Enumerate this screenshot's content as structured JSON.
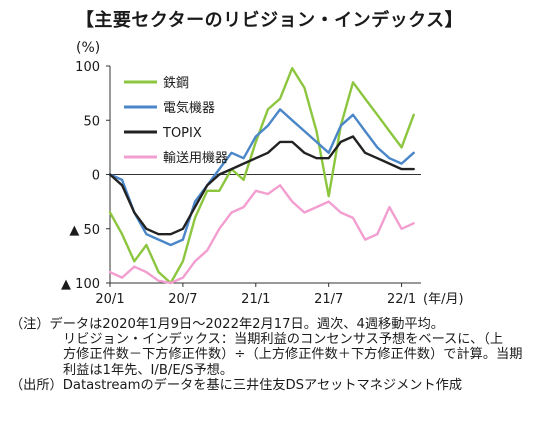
{
  "title": "【主要セクターのリビジョン・インデックス】",
  "notes": [
    "（注）データは2020年1月9日～2022年2月17日。週次、4週移動平均。",
    "リビジョン・インデックス：当期利益のコンセンサス予想をベースに、（上",
    "方修正件数－下方修正件数）÷（上方修正件数＋下方修正件数）で計算。当期利益は1年先、I/B/E/S予想。",
    "（出所）Datastreamのデータを基に三井住友DSアセットマネジメント作成"
  ],
  "chart_data": {
    "type": "line",
    "ylabel": "(%)",
    "xlabel": "(年/月)",
    "ylim": [
      -100,
      100
    ],
    "yticks": [
      100,
      50,
      0,
      -50,
      -100
    ],
    "ytick_labels": [
      "100",
      "50",
      "0",
      "▲ 50",
      "▲ 100"
    ],
    "xticks": [
      "20/1",
      "20/7",
      "21/1",
      "21/7",
      "22/1"
    ],
    "x_range": [
      "2020-01",
      "2022-02"
    ],
    "grid": false,
    "legend_position": "top-left",
    "series": [
      {
        "name": "鉄鋼",
        "color": "#8cc63f",
        "x": [
          "2020-01",
          "2020-02",
          "2020-03",
          "2020-04",
          "2020-05",
          "2020-06",
          "2020-07",
          "2020-08",
          "2020-09",
          "2020-10",
          "2020-11",
          "2020-12",
          "2021-01",
          "2021-02",
          "2021-03",
          "2021-04",
          "2021-05",
          "2021-06",
          "2021-07",
          "2021-08",
          "2021-09",
          "2021-10",
          "2021-11",
          "2021-12",
          "2022-01",
          "2022-02"
        ],
        "values": [
          -35,
          -55,
          -80,
          -65,
          -90,
          -100,
          -80,
          -40,
          -15,
          -15,
          5,
          -5,
          30,
          60,
          70,
          98,
          80,
          40,
          -20,
          45,
          85,
          70,
          55,
          40,
          25,
          55
        ]
      },
      {
        "name": "電気機器",
        "color": "#4a86c8",
        "x": [
          "2020-01",
          "2020-02",
          "2020-03",
          "2020-04",
          "2020-05",
          "2020-06",
          "2020-07",
          "2020-08",
          "2020-09",
          "2020-10",
          "2020-11",
          "2020-12",
          "2021-01",
          "2021-02",
          "2021-03",
          "2021-04",
          "2021-05",
          "2021-06",
          "2021-07",
          "2021-08",
          "2021-09",
          "2021-10",
          "2021-11",
          "2021-12",
          "2022-01",
          "2022-02"
        ],
        "values": [
          0,
          -5,
          -35,
          -55,
          -60,
          -65,
          -60,
          -25,
          -10,
          5,
          20,
          15,
          35,
          45,
          60,
          50,
          40,
          30,
          20,
          45,
          55,
          40,
          25,
          15,
          10,
          20
        ]
      },
      {
        "name": "TOPIX",
        "color": "#222222",
        "x": [
          "2020-01",
          "2020-02",
          "2020-03",
          "2020-04",
          "2020-05",
          "2020-06",
          "2020-07",
          "2020-08",
          "2020-09",
          "2020-10",
          "2020-11",
          "2020-12",
          "2021-01",
          "2021-02",
          "2021-03",
          "2021-04",
          "2021-05",
          "2021-06",
          "2021-07",
          "2021-08",
          "2021-09",
          "2021-10",
          "2021-11",
          "2021-12",
          "2022-01",
          "2022-02"
        ],
        "values": [
          0,
          -10,
          -35,
          -50,
          -55,
          -55,
          -50,
          -30,
          -10,
          0,
          5,
          10,
          15,
          20,
          30,
          30,
          20,
          15,
          15,
          30,
          35,
          20,
          15,
          10,
          5,
          5
        ]
      },
      {
        "name": "輸送用機器",
        "color": "#f29ed0",
        "x": [
          "2020-01",
          "2020-02",
          "2020-03",
          "2020-04",
          "2020-05",
          "2020-06",
          "2020-07",
          "2020-08",
          "2020-09",
          "2020-10",
          "2020-11",
          "2020-12",
          "2021-01",
          "2021-02",
          "2021-03",
          "2021-04",
          "2021-05",
          "2021-06",
          "2021-07",
          "2021-08",
          "2021-09",
          "2021-10",
          "2021-11",
          "2021-12",
          "2022-01",
          "2022-02"
        ],
        "values": [
          -90,
          -95,
          -85,
          -90,
          -98,
          -100,
          -95,
          -80,
          -70,
          -50,
          -35,
          -30,
          -15,
          -18,
          -10,
          -25,
          -35,
          -30,
          -25,
          -35,
          -40,
          -60,
          -55,
          -30,
          -50,
          -45
        ]
      }
    ]
  }
}
